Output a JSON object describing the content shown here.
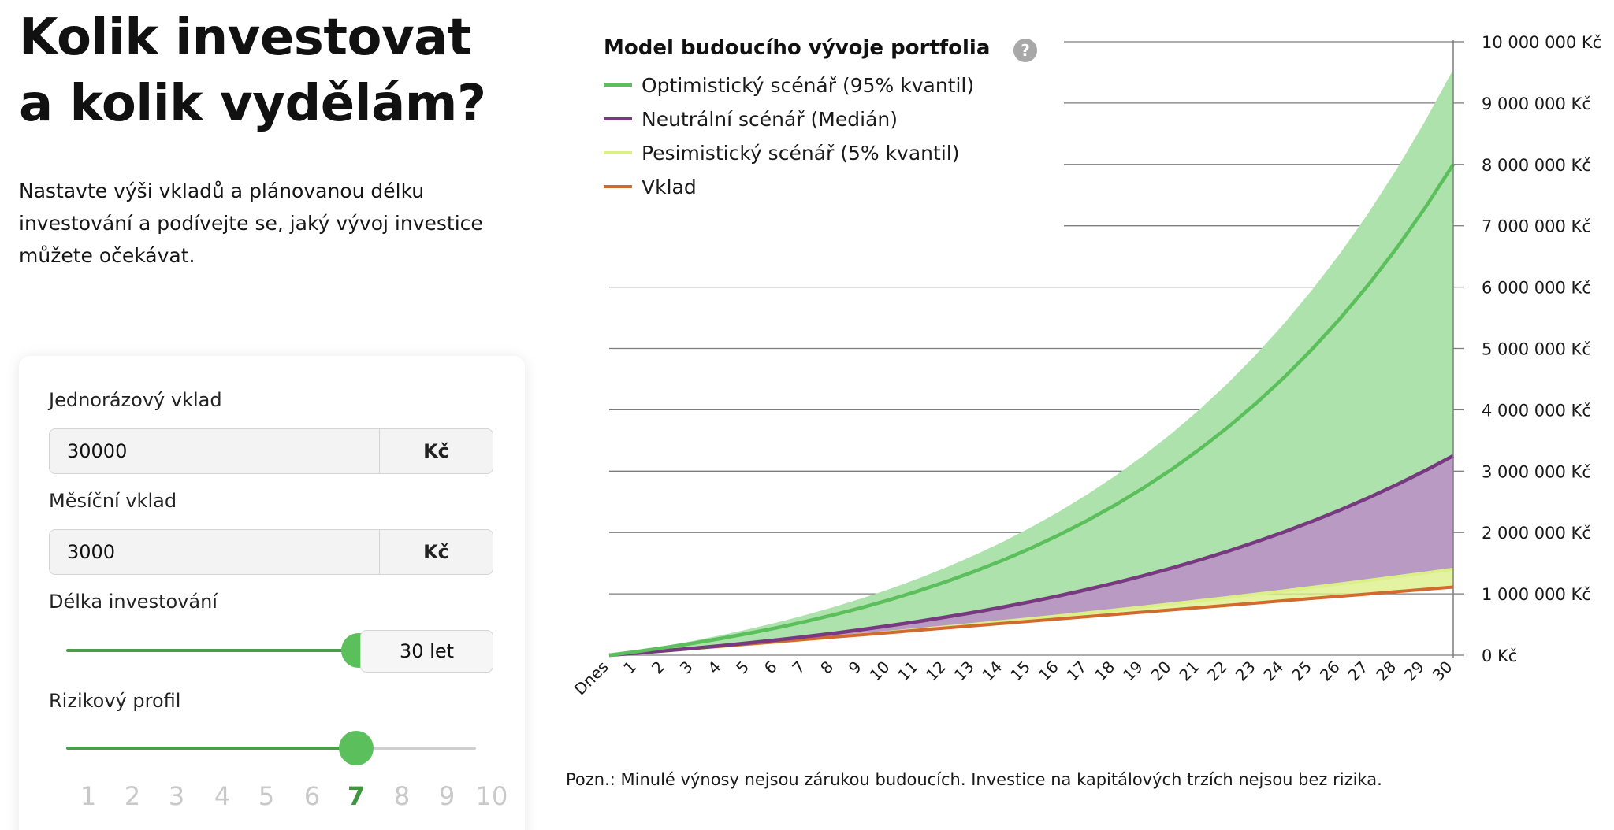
{
  "headline": {
    "line1": "Kolik investovat",
    "line2": "a kolik vydělám?"
  },
  "intro": "Nastavte výši vkladů a plánovanou délku investování a podívejte se, jaký vývoj investice můžete očekávat.",
  "form": {
    "lump_sum": {
      "label": "Jednorázový vklad",
      "value": "30000",
      "unit": "Kč"
    },
    "monthly": {
      "label": "Měsíční vklad",
      "value": "3000",
      "unit": "Kč"
    },
    "duration": {
      "label": "Délka investování",
      "value_text": "30 let",
      "slider_fraction": 0.9
    },
    "risk": {
      "label": "Rizikový profil",
      "levels": [
        "1",
        "2",
        "3",
        "4",
        "5",
        "6",
        "7",
        "8",
        "9",
        "10"
      ],
      "selected": "7"
    }
  },
  "colors": {
    "accent": "#5bbf5b",
    "accent_dark": "#3f963f",
    "optimistic": "#5bbf5b",
    "neutral": "#77397f",
    "pessimistic": "#dcf08a",
    "deposit": "#d2692e",
    "band_green": "#aee2ac",
    "band_purple": "#b99ac2"
  },
  "note": "Pozn.: Minulé výnosy nejsou zárukou budoucích. Investice na kapitálových trzích nejsou bez rizika.",
  "chart_data": {
    "type": "area",
    "title": "Model budoucího vývoje portfolia",
    "x": [
      "Dnes",
      "1",
      "2",
      "3",
      "4",
      "5",
      "6",
      "7",
      "8",
      "9",
      "10",
      "11",
      "12",
      "13",
      "14",
      "15",
      "16",
      "17",
      "18",
      "19",
      "20",
      "21",
      "22",
      "23",
      "24",
      "25",
      "26",
      "27",
      "28",
      "29",
      "30"
    ],
    "ylim": [
      0,
      10000000
    ],
    "yticks": [
      "0 Kč",
      "1 000 000 Kč",
      "2 000 000 Kč",
      "3 000 000 Kč",
      "4 000 000 Kč",
      "5 000 000 Kč",
      "6 000 000 Kč",
      "7 000 000 Kč",
      "8 000 000 Kč",
      "9 000 000 Kč",
      "10 000 000 Kč"
    ],
    "yaxis_position": "right",
    "grid": true,
    "legend_position": "top-left",
    "series": [
      {
        "name": "Optimistický scénář (95% kvantil)",
        "color": "#5bbf5b",
        "end_value": 8000000,
        "upper_band_end": 9550000
      },
      {
        "name": "Neutrální scénář (Medián)",
        "color": "#77397f",
        "end_value": 3250000
      },
      {
        "name": "Pesimistický scénář (5% kvantil)",
        "color": "#dcf08a",
        "end_value": 1400000
      },
      {
        "name": "Vklad",
        "color": "#d2692e",
        "end_value": 1110000
      }
    ]
  }
}
